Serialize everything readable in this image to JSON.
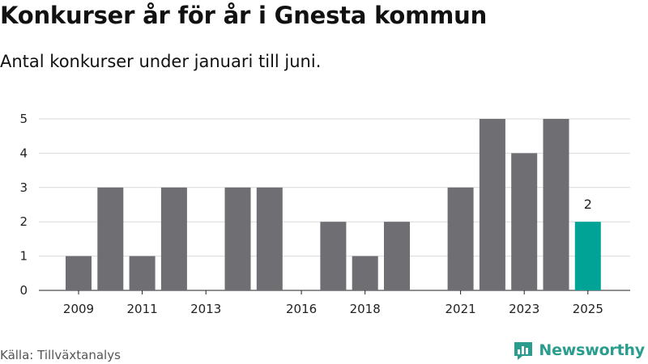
{
  "header": {
    "title": "Konkurser år för år i Gnesta kommun",
    "subtitle": "Antal konkurser under januari till juni."
  },
  "footer": {
    "source": "Källa: Tillväxtanalys",
    "brand": "Newsworthy",
    "brand_icon": "newsworthy-logo-icon"
  },
  "colors": {
    "bar": "#6e6e73",
    "highlight": "#00a395",
    "grid": "#d9d9d9",
    "axis": "#222222",
    "brand": "#2a9d8f"
  },
  "chart_data": {
    "type": "bar",
    "title": "Konkurser år för år i Gnesta kommun",
    "subtitle": "Antal konkurser under januari till juni.",
    "xlabel": "",
    "ylabel": "",
    "categories": [
      "2009",
      "2010",
      "2011",
      "2012",
      "2013",
      "2014",
      "2015",
      "2016",
      "2017",
      "2018",
      "2019",
      "2020",
      "2021",
      "2022",
      "2023",
      "2024",
      "2025"
    ],
    "values": [
      1,
      3,
      1,
      3,
      0,
      3,
      3,
      0,
      2,
      1,
      2,
      0,
      3,
      5,
      4,
      5,
      2
    ],
    "x_tick_labels": [
      "2009",
      "2011",
      "2013",
      "2016",
      "2018",
      "2021",
      "2023",
      "2025"
    ],
    "y_ticks": [
      0,
      1,
      2,
      3,
      4,
      5
    ],
    "ylim": [
      0,
      5
    ],
    "grid": true,
    "highlight": {
      "category": "2025",
      "value": 2,
      "label": "2"
    }
  }
}
